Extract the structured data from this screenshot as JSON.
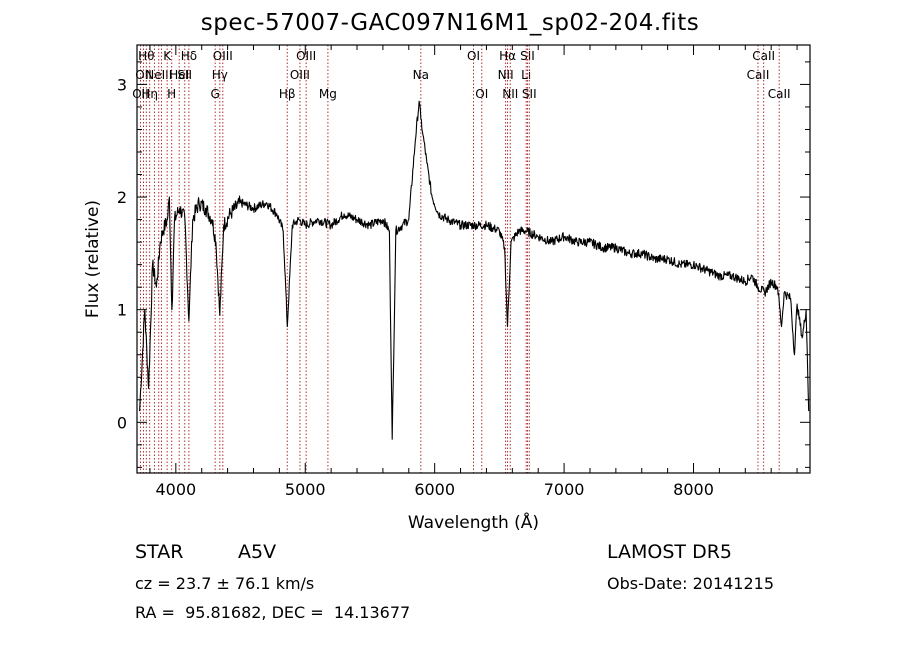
{
  "chart_data": {
    "type": "line",
    "title": "spec-57007-GAC097N16M1_sp02-204.fits",
    "xlabel": "Wavelength (Å)",
    "ylabel": "Flux (relative)",
    "xlim": [
      3700,
      8900
    ],
    "ylim": [
      -0.45,
      3.35
    ],
    "xticks": [
      4000,
      5000,
      6000,
      7000,
      8000
    ],
    "yticks": [
      0,
      1,
      2,
      3
    ],
    "x": [
      3720,
      3760,
      3790,
      3820,
      3850,
      3880,
      3900,
      3935,
      3950,
      3970,
      3990,
      4030,
      4070,
      4101,
      4130,
      4180,
      4230,
      4280,
      4310,
      4340,
      4370,
      4420,
      4500,
      4600,
      4700,
      4780,
      4830,
      4861,
      4900,
      4950,
      5000,
      5100,
      5200,
      5300,
      5400,
      5500,
      5600,
      5650,
      5672,
      5700,
      5750,
      5800,
      5850,
      5880,
      5893,
      5910,
      5940,
      5980,
      6030,
      6100,
      6200,
      6300,
      6400,
      6500,
      6540,
      6563,
      6590,
      6650,
      6700,
      6800,
      6900,
      7000,
      7100,
      7200,
      7300,
      7400,
      7500,
      7600,
      7700,
      7800,
      7900,
      8000,
      8100,
      8200,
      8300,
      8400,
      8450,
      8500,
      8550,
      8600,
      8650,
      8680,
      8700,
      8750,
      8780,
      8800,
      8840,
      8870,
      8890
    ],
    "y": [
      0.1,
      1.0,
      0.3,
      1.4,
      1.2,
      1.6,
      1.7,
      1.8,
      2.0,
      1.0,
      1.8,
      1.9,
      1.8,
      0.9,
      1.8,
      1.95,
      1.9,
      1.8,
      1.6,
      0.95,
      1.75,
      1.85,
      1.95,
      1.9,
      1.95,
      1.85,
      1.7,
      0.85,
      1.75,
      1.8,
      1.75,
      1.8,
      1.75,
      1.85,
      1.8,
      1.75,
      1.8,
      1.7,
      -0.15,
      1.7,
      1.75,
      1.8,
      2.5,
      2.85,
      2.7,
      2.55,
      2.3,
      2.0,
      1.85,
      1.8,
      1.75,
      1.75,
      1.75,
      1.7,
      1.55,
      0.85,
      1.6,
      1.7,
      1.7,
      1.65,
      1.6,
      1.65,
      1.6,
      1.6,
      1.55,
      1.55,
      1.5,
      1.5,
      1.45,
      1.45,
      1.4,
      1.4,
      1.35,
      1.3,
      1.3,
      1.25,
      1.3,
      1.2,
      1.15,
      1.25,
      1.2,
      0.85,
      1.15,
      1.1,
      0.6,
      1.05,
      0.75,
      1.0,
      0.1
    ],
    "lines": [
      {
        "wl": 3727,
        "row": 2,
        "label": "OII"
      },
      {
        "wl": 3750,
        "row": 1,
        "label": "OII"
      },
      {
        "wl": 3772,
        "row": 0,
        "label": "Hθ"
      },
      {
        "wl": 3798,
        "row": 2,
        "label": "Hη"
      },
      {
        "wl": 3835,
        "row": 0,
        "label": ""
      },
      {
        "wl": 3868,
        "row": 1,
        "label": "NeIII"
      },
      {
        "wl": 3889,
        "row": 1,
        "label": ""
      },
      {
        "wl": 3933,
        "row": 0,
        "label": "K"
      },
      {
        "wl": 3968,
        "row": 2,
        "label": "H"
      },
      {
        "wl": 4026,
        "row": 1,
        "label": "HeI"
      },
      {
        "wl": 4069,
        "row": 1,
        "label": "SII"
      },
      {
        "wl": 4101,
        "row": 0,
        "label": "Hδ"
      },
      {
        "wl": 4304,
        "row": 2,
        "label": "G"
      },
      {
        "wl": 4340,
        "row": 1,
        "label": "Hγ"
      },
      {
        "wl": 4363,
        "row": 0,
        "label": "OIII"
      },
      {
        "wl": 4861,
        "row": 2,
        "label": "Hβ"
      },
      {
        "wl": 4959,
        "row": 1,
        "label": "OIII"
      },
      {
        "wl": 5007,
        "row": 0,
        "label": "OIII"
      },
      {
        "wl": 5175,
        "row": 2,
        "label": "Mg"
      },
      {
        "wl": 5893,
        "row": 1,
        "label": "Na"
      },
      {
        "wl": 6300,
        "row": 0,
        "label": "OI"
      },
      {
        "wl": 6364,
        "row": 2,
        "label": "OI"
      },
      {
        "wl": 6548,
        "row": 1,
        "label": "NII"
      },
      {
        "wl": 6563,
        "row": 0,
        "label": "Hα"
      },
      {
        "wl": 6584,
        "row": 2,
        "label": "NII"
      },
      {
        "wl": 6707,
        "row": 1,
        "label": "Li"
      },
      {
        "wl": 6717,
        "row": 0,
        "label": "SII"
      },
      {
        "wl": 6731,
        "row": 2,
        "label": "SII"
      },
      {
        "wl": 8498,
        "row": 1,
        "label": "CaII"
      },
      {
        "wl": 8542,
        "row": 0,
        "label": "CaII"
      },
      {
        "wl": 8662,
        "row": 2,
        "label": "CaII"
      }
    ],
    "grid": false,
    "colors": {
      "spectrum": "#000000",
      "line_marker": "#b03030"
    }
  },
  "info": {
    "class_label": "STAR",
    "subclass": "A5V",
    "survey": "LAMOST DR5",
    "velocity": "cz = 23.7 ± 76.1 km/s",
    "obs_date": "Obs-Date: 20141215",
    "coords": "RA =  95.81682, DEC =  14.13677"
  }
}
